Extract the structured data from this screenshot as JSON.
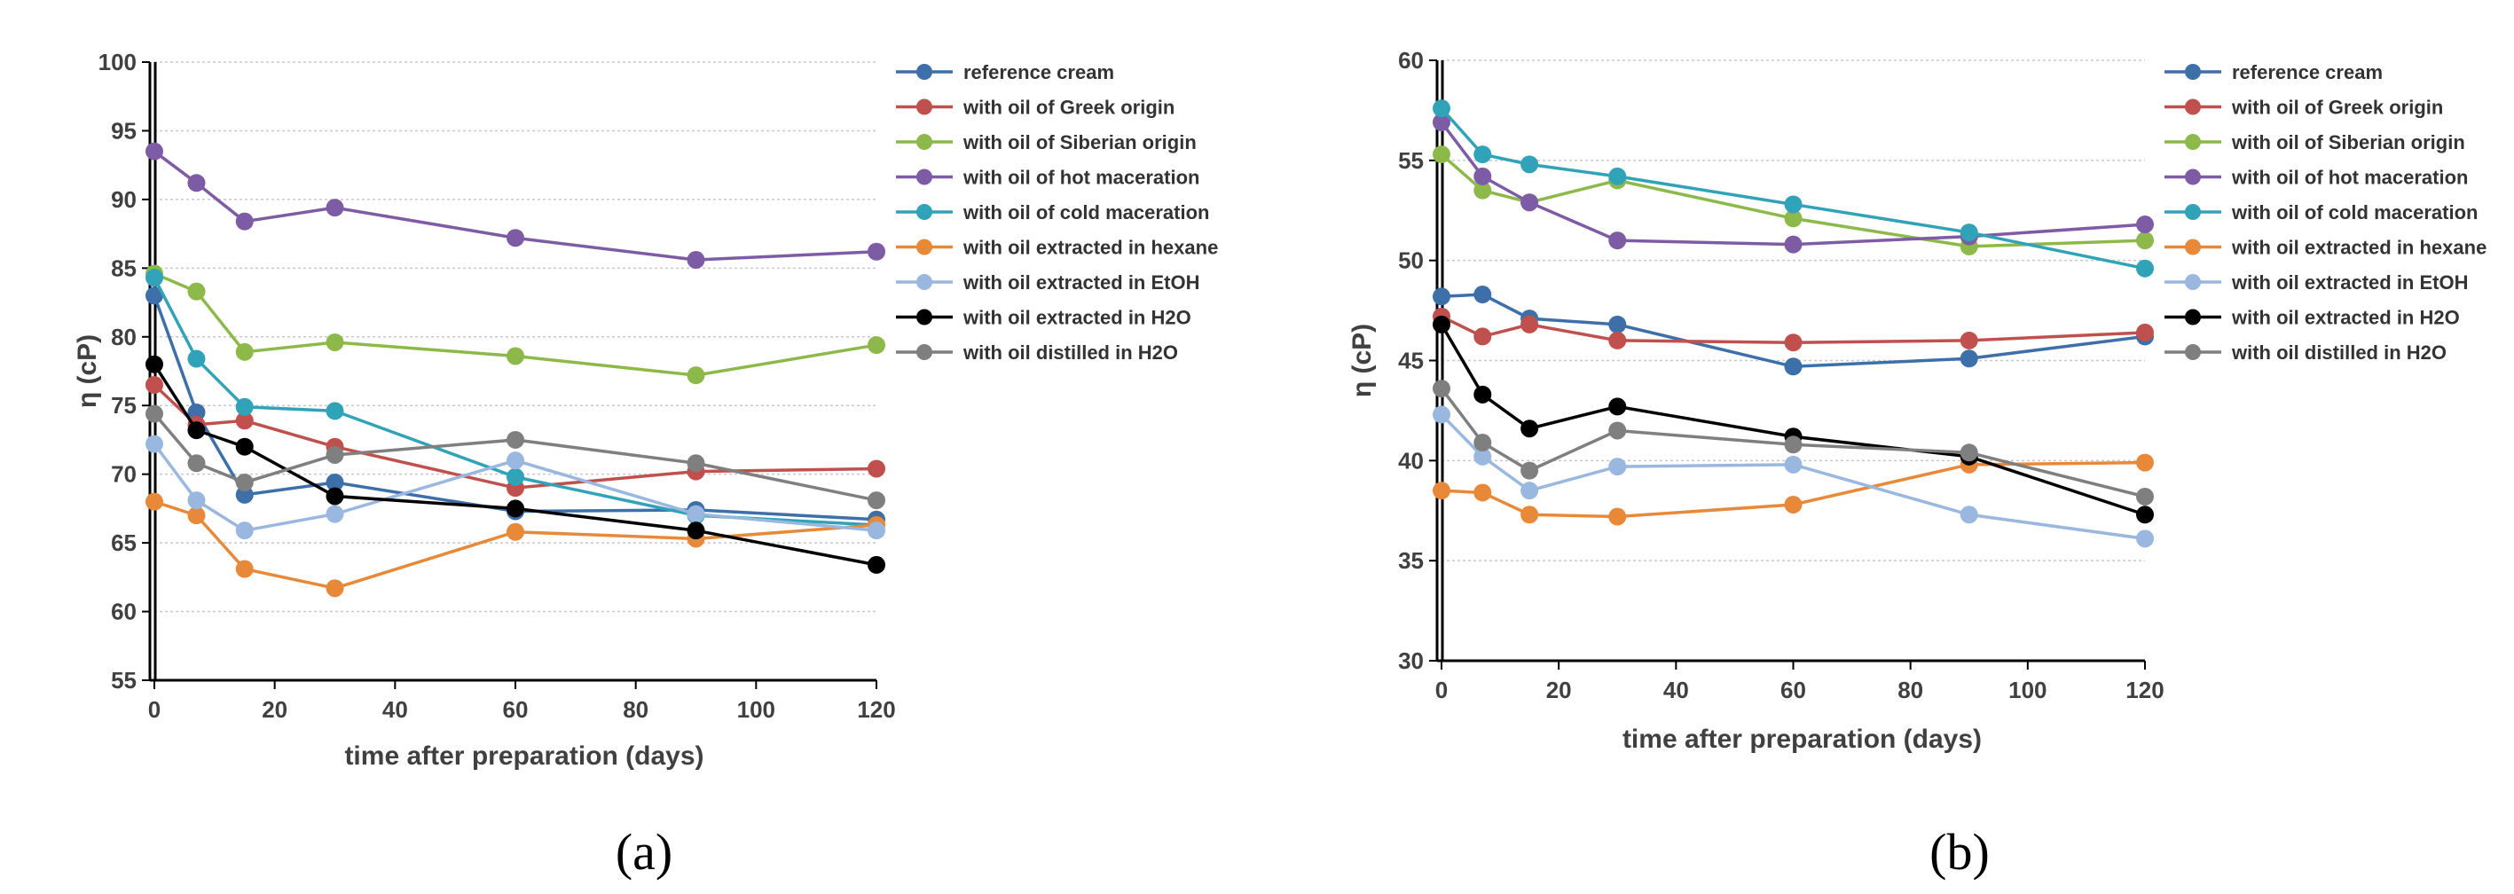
{
  "chart_data": [
    {
      "type": "line",
      "panel_label": "(a)",
      "title": "",
      "xlabel": "time after preparation (days)",
      "ylabel": "η (cP)",
      "xlim": [
        0,
        120
      ],
      "ylim": [
        55,
        100
      ],
      "x_ticks": [
        0,
        20,
        40,
        60,
        80,
        100,
        120
      ],
      "y_ticks": [
        55,
        60,
        65,
        70,
        75,
        80,
        85,
        90,
        95,
        100
      ],
      "grid": "horizontal",
      "legend_position": "right",
      "x": [
        0,
        7,
        15,
        30,
        60,
        90,
        120
      ],
      "series": [
        {
          "name": "reference cream",
          "color": "#3d6fa8",
          "values": [
            83.0,
            74.5,
            68.5,
            69.4,
            67.3,
            67.4,
            66.7
          ]
        },
        {
          "name": "with oil of Greek origin",
          "color": "#c0504d",
          "values": [
            76.5,
            73.6,
            73.9,
            72.0,
            69.0,
            70.2,
            70.4
          ]
        },
        {
          "name": "with oil of Siberian origin",
          "color": "#8db84a",
          "values": [
            84.6,
            83.3,
            78.9,
            79.6,
            78.6,
            77.2,
            79.4
          ]
        },
        {
          "name": "with oil of hot maceration",
          "color": "#7d5ca5",
          "values": [
            93.5,
            91.2,
            88.4,
            89.4,
            87.2,
            85.6,
            86.2
          ]
        },
        {
          "name": "with oil of cold maceration",
          "color": "#31a3b8",
          "values": [
            84.3,
            78.4,
            74.9,
            74.6,
            69.8,
            67.0,
            66.3
          ]
        },
        {
          "name": "with oil extracted in hexane",
          "color": "#e8893a",
          "values": [
            68.0,
            67.0,
            63.1,
            61.7,
            65.8,
            65.3,
            66.3
          ]
        },
        {
          "name": "with oil extracted in EtOH",
          "color": "#99b7df",
          "values": [
            72.2,
            68.1,
            65.9,
            67.1,
            71.0,
            67.1,
            65.9
          ]
        },
        {
          "name": "with oil extracted in H2O",
          "color": "#000000",
          "values": [
            78.0,
            73.2,
            72.0,
            68.4,
            67.5,
            65.9,
            63.4
          ]
        },
        {
          "name": "with oil distilled in H2O",
          "color": "#7f7f7f",
          "values": [
            74.4,
            70.8,
            69.4,
            71.4,
            72.5,
            70.8,
            68.1
          ]
        }
      ]
    },
    {
      "type": "line",
      "panel_label": "(b)",
      "title": "",
      "xlabel": "time after preparation (days)",
      "ylabel": "η (cP)",
      "xlim": [
        0,
        120
      ],
      "ylim": [
        30,
        60
      ],
      "x_ticks": [
        0,
        20,
        40,
        60,
        80,
        100,
        120
      ],
      "y_ticks": [
        30,
        35,
        40,
        45,
        50,
        55,
        60
      ],
      "grid": "horizontal",
      "legend_position": "right",
      "x": [
        0,
        7,
        15,
        30,
        60,
        90,
        120
      ],
      "series": [
        {
          "name": "reference cream",
          "color": "#3d6fa8",
          "values": [
            48.2,
            48.3,
            47.1,
            46.8,
            44.7,
            45.1,
            46.2
          ]
        },
        {
          "name": "with oil of Greek origin",
          "color": "#c0504d",
          "values": [
            47.2,
            46.2,
            46.8,
            46.0,
            45.9,
            46.0,
            46.4
          ]
        },
        {
          "name": "with oil of Siberian origin",
          "color": "#8db84a",
          "values": [
            55.3,
            53.5,
            52.9,
            54.0,
            52.1,
            50.7,
            51.0
          ]
        },
        {
          "name": "with oil of hot maceration",
          "color": "#7d5ca5",
          "values": [
            56.9,
            54.2,
            52.9,
            51.0,
            50.8,
            51.2,
            51.8
          ]
        },
        {
          "name": "with oil of cold maceration",
          "color": "#31a3b8",
          "values": [
            57.6,
            55.3,
            54.8,
            54.2,
            52.8,
            51.4,
            49.6
          ]
        },
        {
          "name": "with oil extracted in hexane",
          "color": "#e8893a",
          "values": [
            38.5,
            38.4,
            37.3,
            37.2,
            37.8,
            39.8,
            39.9
          ]
        },
        {
          "name": "with oil extracted in EtOH",
          "color": "#99b7df",
          "values": [
            42.3,
            40.2,
            38.5,
            39.7,
            39.8,
            37.3,
            36.1
          ]
        },
        {
          "name": "with oil extracted in H2O",
          "color": "#000000",
          "values": [
            46.8,
            43.3,
            41.6,
            42.7,
            41.2,
            40.2,
            37.3
          ]
        },
        {
          "name": "with oil distilled in H2O",
          "color": "#7f7f7f",
          "values": [
            43.6,
            40.9,
            39.5,
            41.5,
            40.8,
            40.4,
            38.2
          ]
        }
      ]
    }
  ]
}
